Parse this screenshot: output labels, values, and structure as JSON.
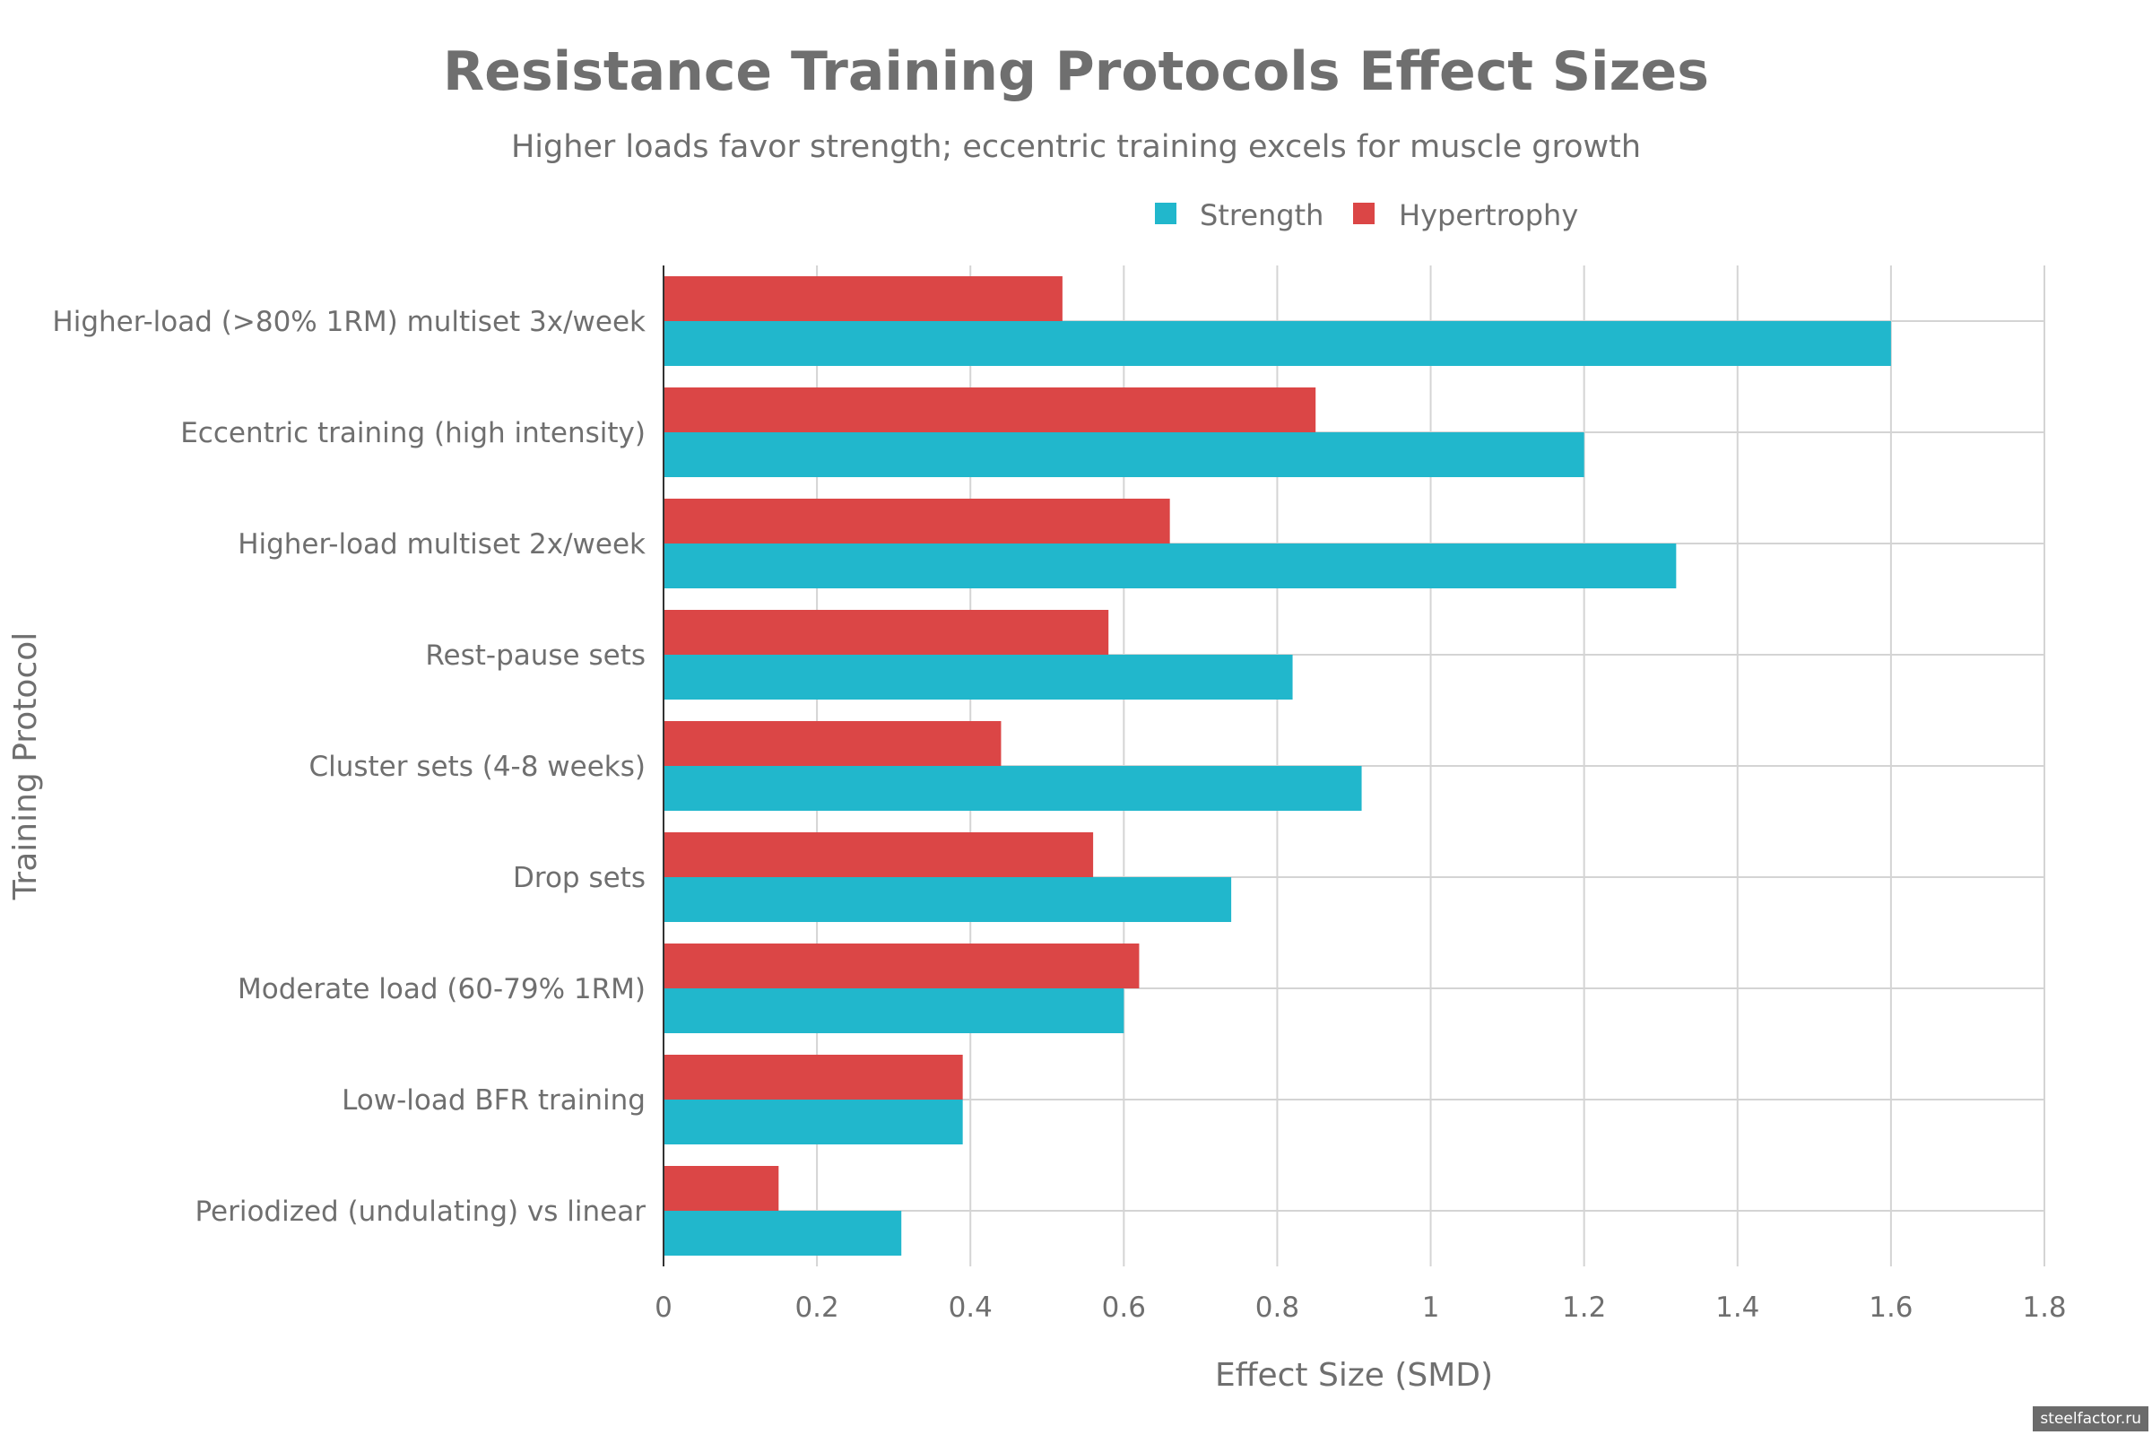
{
  "chart_data": {
    "type": "bar",
    "orientation": "horizontal",
    "title": "Resistance Training Protocols Effect Sizes",
    "subtitle": "Higher loads favor strength; eccentric training excels for muscle growth",
    "xlabel": "Effect Size (SMD)",
    "ylabel": "Training Protocol",
    "xlim": [
      0,
      1.8
    ],
    "xticks": [
      0,
      0.2,
      0.4,
      0.6,
      0.8,
      1,
      1.2,
      1.4,
      1.6,
      1.8
    ],
    "xtick_labels": [
      "0",
      "0.2",
      "0.4",
      "0.6",
      "0.8",
      "1",
      "1.2",
      "1.4",
      "1.6",
      "1.8"
    ],
    "grid": true,
    "legend_position": "top-right",
    "categories": [
      "Higher-load (>80% 1RM) multiset 3x/week",
      "Eccentric training (high intensity)",
      "Higher-load multiset 2x/week",
      "Rest-pause sets",
      "Cluster sets (4-8 weeks)",
      "Drop sets",
      "Moderate load (60-79% 1RM)",
      "Low-load BFR training",
      "Periodized (undulating) vs linear"
    ],
    "series": [
      {
        "name": "Strength",
        "color": "#21b7cc",
        "values": [
          1.6,
          1.2,
          1.32,
          0.82,
          0.91,
          0.74,
          0.6,
          0.39,
          0.31
        ]
      },
      {
        "name": "Hypertrophy",
        "color": "#db4646",
        "values": [
          0.52,
          0.85,
          0.66,
          0.58,
          0.44,
          0.56,
          0.62,
          0.39,
          0.15
        ]
      }
    ]
  },
  "watermark": "steelfactor.ru"
}
